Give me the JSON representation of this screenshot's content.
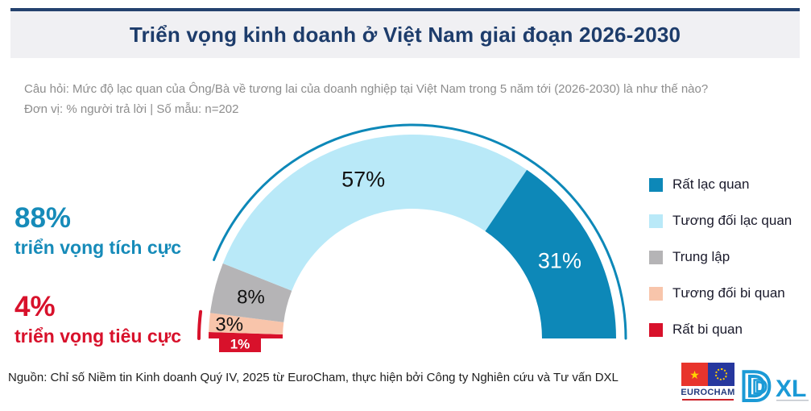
{
  "title": "Triển vọng kinh doanh ở Việt Nam giai đoạn 2026-2030",
  "question": {
    "line1": "Câu hỏi: Mức độ lạc quan của Ông/Bà về tương lai của doanh nghiệp tại Việt Nam trong 5 năm tới (2026-2030) là như thế nào?",
    "line2": "Đơn vị: % người trả lời | Số mẫu: n=202"
  },
  "summary": {
    "positive_value": "88%",
    "positive_label": "triển vọng tích cực",
    "negative_value": "4%",
    "negative_label": "triển vọng tiêu cực"
  },
  "chart_data": {
    "type": "gauge-donut",
    "unit": "% người trả lời",
    "sample": "n=202",
    "segments": [
      {
        "label": "Rất bi quan",
        "value": 1,
        "color": "#d8112b",
        "label_color": "#ffffff"
      },
      {
        "label": "Tương đối bi quan",
        "value": 3,
        "color": "#f8c5ab",
        "label_color": "#111111"
      },
      {
        "label": "Trung lập",
        "value": 8,
        "color": "#b5b4b6",
        "label_color": "#111111"
      },
      {
        "label": "Tương đối lạc quan",
        "value": 57,
        "color": "#b9e9f8",
        "label_color": "#111111"
      },
      {
        "label": "Rất lạc quan",
        "value": 31,
        "color": "#0d88b8",
        "label_color": "#ffffff"
      }
    ],
    "legend_order": [
      "Rất lạc quan",
      "Tương đối lạc quan",
      "Trung lập",
      "Tương đối bi quan",
      "Rất bi quan"
    ],
    "positive_arc": {
      "percent": 88,
      "color": "#0d88b8"
    },
    "negative_arc": {
      "percent": 4,
      "color": "#d8112b"
    }
  },
  "source": "Nguồn: Chỉ số Niềm tin Kinh doanh Quý IV, 2025 từ EuroCham, thực hiện bởi Công ty Nghiên cứu và Tư vấn DXL",
  "logos": {
    "eurocham": "EUROCHAM",
    "dxl_d": "D",
    "dxl_xl": "XL"
  },
  "colors": {
    "accent_teal": "#168bb9",
    "negative_red": "#d8112b",
    "title_navy": "#1d3c6b",
    "question_gray": "#8d8d8d"
  }
}
